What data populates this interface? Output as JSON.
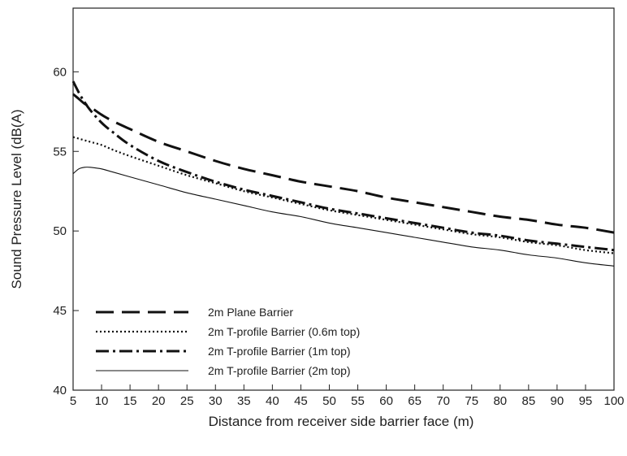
{
  "chart_data": {
    "type": "line",
    "xlabel": "Distance from receiver side barrier face (m)",
    "ylabel": "Sound Pressure Level (dB(A)",
    "xlim": [
      5,
      100
    ],
    "ylim": [
      40,
      64
    ],
    "xticks": [
      5,
      10,
      15,
      20,
      25,
      30,
      35,
      40,
      45,
      50,
      55,
      60,
      65,
      70,
      75,
      80,
      85,
      90,
      95,
      100
    ],
    "yticks": [
      40,
      45,
      50,
      55,
      60
    ],
    "grid": false,
    "legend_position": "bottom-left",
    "x": [
      5,
      6,
      7,
      8,
      10,
      12,
      15,
      20,
      25,
      30,
      35,
      40,
      45,
      50,
      55,
      60,
      65,
      70,
      75,
      80,
      85,
      90,
      95,
      100
    ],
    "series": [
      {
        "name": "2m Plane Barrier",
        "style": "dashed",
        "values": [
          58.6,
          58.3,
          58.0,
          57.8,
          57.3,
          56.9,
          56.4,
          55.6,
          55.0,
          54.4,
          53.9,
          53.5,
          53.1,
          52.8,
          52.5,
          52.1,
          51.8,
          51.5,
          51.2,
          50.9,
          50.7,
          50.4,
          50.2,
          49.9
        ]
      },
      {
        "name": "2m T-profile Barrier (0.6m top)",
        "style": "dotted",
        "values": [
          55.9,
          55.8,
          55.7,
          55.6,
          55.4,
          55.1,
          54.7,
          54.1,
          53.5,
          53.0,
          52.5,
          52.1,
          51.7,
          51.3,
          51.0,
          50.7,
          50.4,
          50.1,
          49.8,
          49.6,
          49.3,
          49.1,
          48.8,
          48.6
        ]
      },
      {
        "name": "2m T-profile Barrier (1m top)",
        "style": "dash-dot",
        "values": [
          59.4,
          58.7,
          58.1,
          57.6,
          56.8,
          56.2,
          55.4,
          54.4,
          53.7,
          53.1,
          52.6,
          52.2,
          51.8,
          51.4,
          51.1,
          50.8,
          50.5,
          50.2,
          49.9,
          49.7,
          49.4,
          49.2,
          49.0,
          48.8
        ]
      },
      {
        "name": "2m T-profile Barrier (2m top)",
        "style": "solid",
        "values": [
          53.6,
          53.9,
          54.0,
          54.0,
          53.9,
          53.7,
          53.4,
          52.9,
          52.4,
          52.0,
          51.6,
          51.2,
          50.9,
          50.5,
          50.2,
          49.9,
          49.6,
          49.3,
          49.0,
          48.8,
          48.5,
          48.3,
          48.0,
          47.8
        ]
      }
    ]
  },
  "colors": {
    "line": "#111111",
    "axis": "#222222",
    "text": "#222222"
  }
}
